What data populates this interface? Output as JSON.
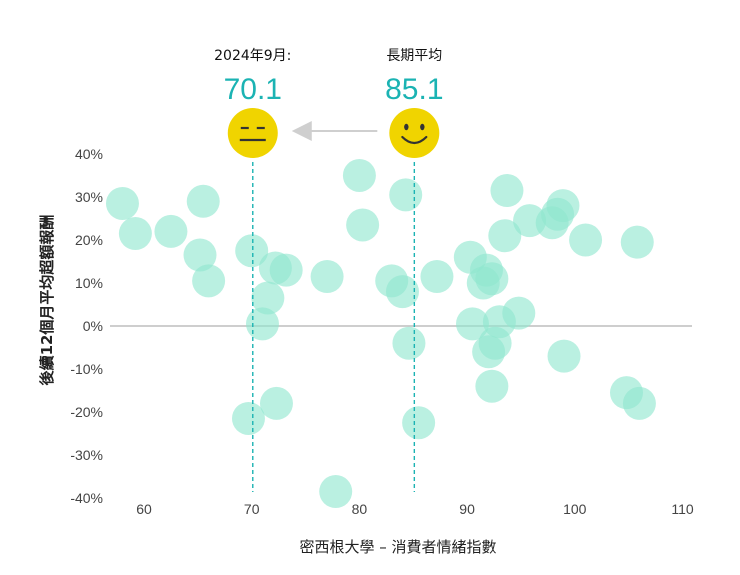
{
  "chart_data": {
    "type": "scatter",
    "title": "",
    "xlabel": "密西根大學 – 消費者情緒指數",
    "ylabel": "後續12個月平均超額報酬",
    "xlim": [
      57,
      112
    ],
    "ylim": [
      -40,
      40
    ],
    "x_ticks": [
      60,
      70,
      80,
      90,
      100,
      110
    ],
    "x_tick_labels": [
      "60",
      "70",
      "80",
      "90",
      "100",
      "110"
    ],
    "y_ticks": [
      40,
      30,
      20,
      10,
      0,
      -10,
      -20,
      -30,
      -40
    ],
    "y_tick_labels": [
      "40%",
      "30%",
      "20%",
      "10%",
      "0%",
      "-10%",
      "-20%",
      "-30%",
      "-40%"
    ],
    "zero_line": true,
    "point_color": "#8fe6cf",
    "points": [
      {
        "x": 58.0,
        "y": 28.5
      },
      {
        "x": 59.2,
        "y": 21.5
      },
      {
        "x": 62.5,
        "y": 22.0
      },
      {
        "x": 65.5,
        "y": 29.0
      },
      {
        "x": 65.2,
        "y": 16.5
      },
      {
        "x": 66.0,
        "y": 10.5
      },
      {
        "x": 70.0,
        "y": 17.5
      },
      {
        "x": 71.0,
        "y": 0.5
      },
      {
        "x": 71.5,
        "y": 6.5
      },
      {
        "x": 72.2,
        "y": 13.5
      },
      {
        "x": 73.2,
        "y": 13.0
      },
      {
        "x": 69.7,
        "y": -21.5
      },
      {
        "x": 72.3,
        "y": -18.0
      },
      {
        "x": 77.0,
        "y": 11.5
      },
      {
        "x": 80.0,
        "y": 35.0
      },
      {
        "x": 80.3,
        "y": 23.5
      },
      {
        "x": 83.0,
        "y": 10.5
      },
      {
        "x": 84.0,
        "y": 8.0
      },
      {
        "x": 84.3,
        "y": 30.5
      },
      {
        "x": 84.6,
        "y": -4.0
      },
      {
        "x": 85.5,
        "y": -22.5
      },
      {
        "x": 87.2,
        "y": 11.5
      },
      {
        "x": 77.8,
        "y": -38.5
      },
      {
        "x": 90.3,
        "y": 16.0
      },
      {
        "x": 90.5,
        "y": 0.5
      },
      {
        "x": 91.8,
        "y": 13.0
      },
      {
        "x": 91.5,
        "y": 10.0
      },
      {
        "x": 92.3,
        "y": 11.0
      },
      {
        "x": 92.0,
        "y": -6.0
      },
      {
        "x": 92.6,
        "y": -4.0
      },
      {
        "x": 92.3,
        "y": -14.0
      },
      {
        "x": 93.0,
        "y": 1.0
      },
      {
        "x": 93.5,
        "y": 21.0
      },
      {
        "x": 93.7,
        "y": 31.5
      },
      {
        "x": 94.8,
        "y": 3.0
      },
      {
        "x": 95.8,
        "y": 24.5
      },
      {
        "x": 97.9,
        "y": 24.0
      },
      {
        "x": 98.4,
        "y": 26.0
      },
      {
        "x": 98.9,
        "y": 28.0
      },
      {
        "x": 99.0,
        "y": -7.0
      },
      {
        "x": 101.0,
        "y": 20.0
      },
      {
        "x": 104.8,
        "y": -15.5
      },
      {
        "x": 106.0,
        "y": -18.0
      },
      {
        "x": 105.8,
        "y": 19.5
      }
    ],
    "annotations": [
      {
        "id": "current",
        "label": "2024年9月:",
        "value": "70.1",
        "x": 70.1,
        "mood": "neutral"
      },
      {
        "id": "average",
        "label": "長期平均",
        "value": "85.1",
        "x": 85.1,
        "mood": "happy"
      }
    ],
    "accent_color": "#1bb3b3",
    "emoji_color": "#f0d400"
  }
}
